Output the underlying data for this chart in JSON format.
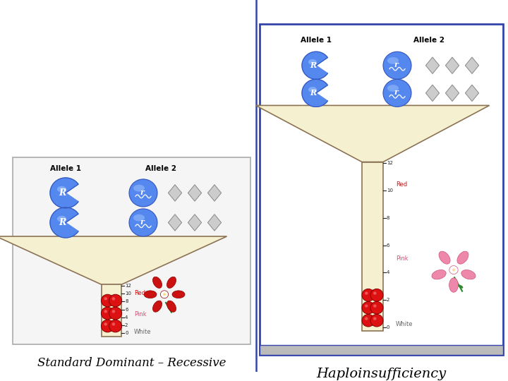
{
  "bg_color": "#ffffff",
  "label1": "Standard Dominant – Recessive",
  "label2": "Haploinsufficiency",
  "allele1_label": "Allele 1",
  "allele2_label": "Allele 2",
  "funnel_color": "#f5f0d0",
  "funnel_edge_color": "#8B7355",
  "ball_color": "#dd1111",
  "ball_edge": "#880000",
  "pacman_color_dark": "#3355bb",
  "pacman_color_light": "#5588ee",
  "diamond_color": "#cccccc",
  "diamond_edge": "#888888",
  "scale_labels_top_to_bot": [
    "12",
    "10",
    "8",
    "6",
    "4",
    "2",
    "0"
  ],
  "text_color": "#000000",
  "box1_edge": "#aaaaaa",
  "box1_fill": "#f5f5f5",
  "screen_fill": "#ffffff",
  "screen_edge": "#3344aa",
  "screen_taskbar": "#bbbbbb",
  "divider_color": "#3344aa",
  "red_flower_color": "#cc1111",
  "pink_flower_color": "#ee88aa",
  "label1_fontsize": 12,
  "label2_fontsize": 14
}
